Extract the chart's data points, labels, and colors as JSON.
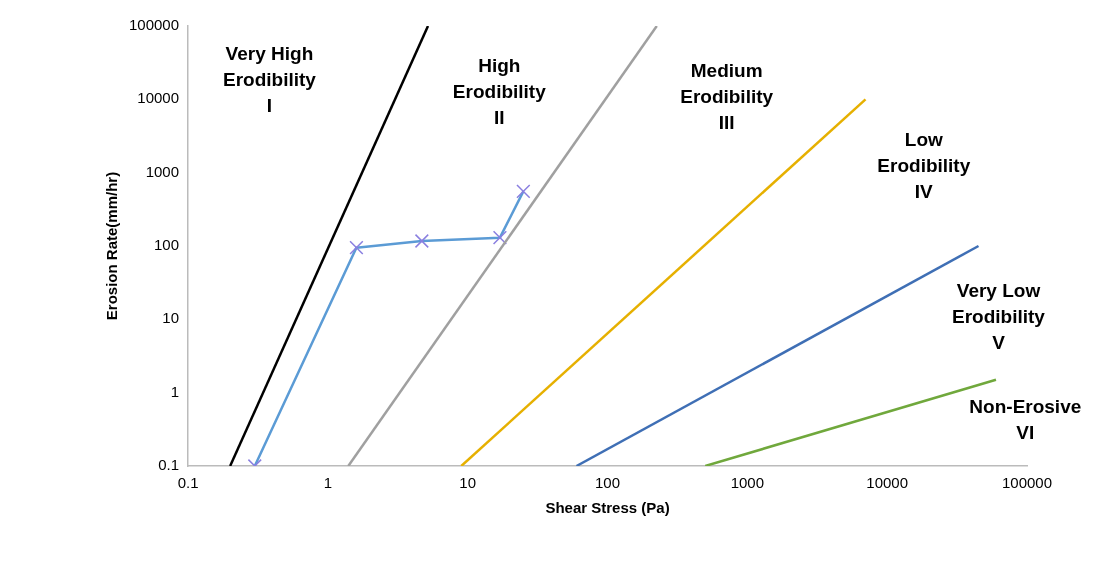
{
  "chart_data": {
    "type": "line",
    "xlabel": "Shear Stress (Pa)",
    "ylabel": "Erosion Rate(mm/hr)",
    "log": "xy",
    "legend": false,
    "xlim": [
      0.1,
      100000
    ],
    "xticks": [
      0.1,
      1,
      10,
      100,
      1000,
      10000,
      100000
    ],
    "ylim": [
      0.1,
      100000
    ],
    "yticks": [
      0.1,
      1,
      10,
      100,
      1000,
      10000,
      100000
    ],
    "series": [
      {
        "color": "#000000",
        "x": [
          0.2,
          5.2
        ],
        "values": [
          0.1,
          100000
        ],
        "marker": "none"
      },
      {
        "color": "#a0a0a0",
        "x": [
          1.4,
          225
        ],
        "values": [
          0.1,
          100000
        ],
        "marker": "none"
      },
      {
        "color": "#e6b000",
        "x": [
          9,
          7000
        ],
        "values": [
          0.1,
          10000
        ],
        "marker": "none"
      },
      {
        "color": "#3f6fb5",
        "x": [
          60,
          45000
        ],
        "values": [
          0.1,
          100
        ],
        "marker": "none"
      },
      {
        "color": "#70a83c",
        "x": [
          500,
          60000
        ],
        "values": [
          0.1,
          1.5
        ],
        "marker": "none"
      },
      {
        "color": "#5b9bd5",
        "x": [
          0.3,
          1.6,
          4.7,
          17,
          25
        ],
        "values": [
          0.1,
          95,
          117,
          130,
          555
        ],
        "marker": "cross"
      }
    ],
    "annotations": [
      "Very High\nErodibility\nI",
      "High\nErodibility\nII",
      "Medium\nErodibility\nIII",
      "Low\nErodibility\nIV",
      "Very Low\nErodibility\nV",
      "Non-Erosive\nVI"
    ]
  }
}
